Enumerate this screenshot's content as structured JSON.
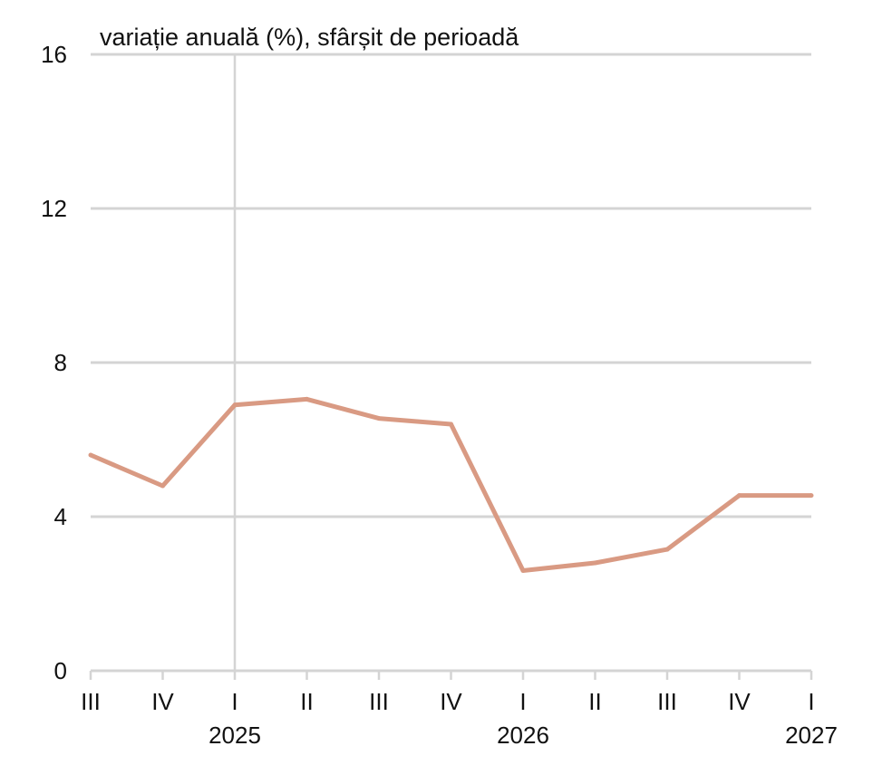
{
  "chart_data": {
    "type": "line",
    "title": "variație anuală (%), sfârșit de perioadă",
    "categories": [
      "III",
      "IV",
      "I",
      "II",
      "III",
      "IV",
      "I",
      "II",
      "III",
      "IV",
      "I"
    ],
    "years": [
      {
        "label": "2025",
        "at_index": 2
      },
      {
        "label": "2026",
        "at_index": 6
      },
      {
        "label": "2027",
        "at_index": 10
      }
    ],
    "series": [
      {
        "values": [
          5.6,
          4.8,
          6.9,
          7.05,
          6.55,
          6.4,
          2.6,
          2.8,
          3.15,
          4.55,
          4.55
        ]
      }
    ],
    "y_ticks": [
      "0",
      "4",
      "8",
      "12",
      "16"
    ],
    "ylim": [
      0,
      16
    ],
    "grid": "horizontal",
    "vertical_marker_index": 2,
    "line_color": "#d99a83",
    "grid_color": "#d4d4d4"
  }
}
